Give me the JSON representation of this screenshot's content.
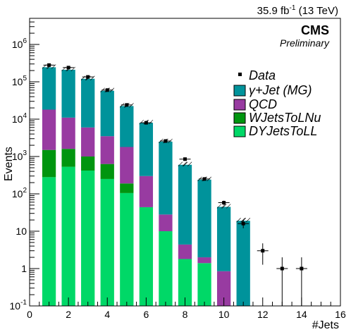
{
  "header": {
    "lumi": "35.9 fb",
    "lumi_exp": "-1",
    "energy": " (13 TeV)",
    "cms": "CMS",
    "preliminary": "Preliminary"
  },
  "colors": {
    "gjet": "#00939b",
    "qcd": "#983ba1",
    "wjets": "#00950f",
    "dyjets": "#00d867",
    "data": "#000000"
  },
  "chart_data": {
    "type": "bar",
    "stacked": true,
    "xlabel": "#Jets",
    "ylabel": "Events",
    "xlim": [
      0,
      16
    ],
    "ylim": [
      0.1,
      5000000
    ],
    "yscale": "log",
    "grid": false,
    "legend_position": "top-right",
    "x_ticks": [
      "0",
      "2",
      "4",
      "6",
      "8",
      "10",
      "12",
      "14",
      "16"
    ],
    "y_ticks": [
      {
        "value": 0.1,
        "base": "10",
        "exp": "-1"
      },
      {
        "value": 1,
        "base": "1",
        "exp": ""
      },
      {
        "value": 10,
        "base": "10",
        "exp": ""
      },
      {
        "value": 100,
        "base": "10",
        "exp": "2"
      },
      {
        "value": 1000,
        "base": "10",
        "exp": "3"
      },
      {
        "value": 10000,
        "base": "10",
        "exp": "4"
      },
      {
        "value": 100000,
        "base": "10",
        "exp": "5"
      },
      {
        "value": 1000000,
        "base": "10",
        "exp": "6"
      }
    ],
    "bins": [
      1,
      2,
      3,
      4,
      5,
      6,
      7,
      8,
      9,
      10,
      11
    ],
    "series": [
      {
        "name": "DYJetsToLL",
        "key": "dyjets",
        "values": [
          280,
          530,
          420,
          250,
          105,
          44,
          10,
          1.8,
          1.4,
          0,
          0
        ]
      },
      {
        "name": "WJetsToLNu",
        "key": "wjets",
        "values": [
          1220,
          1070,
          580,
          380,
          85,
          0,
          0,
          0,
          0,
          0,
          0
        ]
      },
      {
        "name": "QCD",
        "key": "qcd",
        "values": [
          16500,
          9400,
          5000,
          2870,
          1610,
          256,
          18,
          2.6,
          0.6,
          0.85,
          0
        ]
      },
      {
        "name": "γ+Jet (MG)",
        "key": "gjet",
        "values": [
          227000,
          199000,
          114500,
          54000,
          20700,
          7700,
          2472,
          596,
          238,
          44,
          19
        ]
      }
    ],
    "data": {
      "name": "Data",
      "x": [
        1,
        2,
        3,
        4,
        5,
        6,
        7,
        8,
        9,
        10,
        11,
        12,
        13,
        14
      ],
      "y": [
        280000,
        240000,
        135000,
        60000,
        24000,
        8000,
        2600,
        850,
        250,
        58,
        16,
        3,
        1,
        1
      ]
    }
  }
}
